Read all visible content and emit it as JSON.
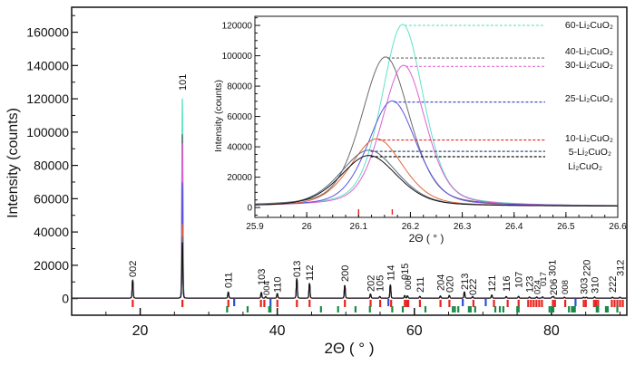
{
  "chart_data": [
    {
      "type": "line",
      "role": "main",
      "xlabel": "2Θ ( ° )",
      "ylabel": "Intensity   (counts)",
      "xlim": [
        10,
        91
      ],
      "ylim": [
        -10000,
        175000
      ],
      "xticks": [
        "20",
        "40",
        "60",
        "80"
      ],
      "xtick_values": [
        20,
        40,
        60,
        80
      ],
      "yticks": [
        "0",
        "20000",
        "40000",
        "60000",
        "80000",
        "100000",
        "120000",
        "140000",
        "160000"
      ],
      "ytick_values": [
        0,
        20000,
        40000,
        60000,
        80000,
        100000,
        120000,
        140000,
        160000
      ],
      "peaks": [
        {
          "hkl": "002",
          "x": 18.9,
          "y": 10700
        },
        {
          "hkl": "101",
          "x": 26.15,
          "y": 33000
        },
        {
          "hkl": "011",
          "x": 32.85,
          "y": 3600
        },
        {
          "hkl": "103",
          "x": 37.67,
          "y": 3300
        },
        {
          "hkl": "004",
          "x": 38.3,
          "y": 800
        },
        {
          "hkl": "110",
          "x": 40.0,
          "y": 2700
        },
        {
          "hkl": "013",
          "x": 42.85,
          "y": 11500
        },
        {
          "hkl": "112",
          "x": 44.7,
          "y": 8700
        },
        {
          "hkl": "200",
          "x": 49.85,
          "y": 7500
        },
        {
          "hkl": "202",
          "x": 53.6,
          "y": 2400
        },
        {
          "hkl": "105",
          "x": 54.96,
          "y": 900
        },
        {
          "hkl": "114",
          "x": 56.5,
          "y": 7800
        },
        {
          "hkl": "015",
          "x": 58.6,
          "y": 1500
        },
        {
          "hkl": "006",
          "x": 59.0,
          "y": 1300
        },
        {
          "hkl": "211",
          "x": 60.8,
          "y": 1000
        },
        {
          "hkl": "204",
          "x": 63.8,
          "y": 1200
        },
        {
          "hkl": "020",
          "x": 65.1,
          "y": 1500
        },
        {
          "hkl": "213",
          "x": 67.3,
          "y": 3600
        },
        {
          "hkl": "022",
          "x": 68.5,
          "y": 900
        },
        {
          "hkl": "121",
          "x": 71.3,
          "y": 1800
        },
        {
          "hkl": "116",
          "x": 73.4,
          "y": 900
        },
        {
          "hkl": "107",
          "x": 75.2,
          "y": 1000
        },
        {
          "hkl": "123",
          "x": 76.8,
          "y": 600
        },
        {
          "hkl": "024",
          "x": 77.85,
          "y": 600
        },
        {
          "hkl": "017",
          "x": 78.7,
          "y": 700
        },
        {
          "hkl": "206",
          "x": 80.3,
          "y": 900
        },
        {
          "hkl": "301",
          "x": 80.1,
          "y": 700
        },
        {
          "hkl": "008",
          "x": 81.9,
          "y": 500
        },
        {
          "hkl": "303",
          "x": 84.7,
          "y": 500
        },
        {
          "hkl": "220",
          "x": 85.1,
          "y": 500
        },
        {
          "hkl": "310",
          "x": 86.3,
          "y": 600
        },
        {
          "hkl": "222",
          "x": 88.9,
          "y": 500
        },
        {
          "hkl": "312",
          "x": 90.0,
          "y": 500
        }
      ],
      "reference_ticks": {
        "red": [
          18.9,
          26.15,
          32.85,
          37.6,
          38.1,
          40.0,
          42.85,
          44.7,
          49.85,
          53.6,
          55.0,
          56.6,
          58.6,
          58.9,
          59.1,
          60.8,
          63.8,
          65.1,
          68.6,
          71.6,
          73.6,
          75.2,
          76.6,
          77.0,
          77.4,
          77.8,
          78.2,
          78.6,
          80.2,
          80.5,
          82.0,
          84.7,
          85.0,
          86.2,
          86.5,
          86.8,
          88.8,
          89.2,
          89.6,
          90.0,
          90.4
        ],
        "blue": [
          33.7,
          39.0,
          56.2,
          67.05,
          70.4,
          83.5
        ],
        "green": [
          32.67,
          35.66,
          38.8,
          39.0,
          46.36,
          48.86,
          51.4,
          53.5,
          56.76,
          58.3,
          61.6,
          65.6,
          65.9,
          66.4,
          67.94,
          68.2,
          68.86,
          71.8,
          72.46,
          72.97,
          75.0,
          75.2,
          79.7,
          80.0,
          80.26,
          82.54,
          82.98,
          83.2,
          83.4,
          86.6,
          86.8,
          87.94,
          88.2,
          89.6
        ]
      },
      "colors": {
        "red": "#e8231e",
        "blue": "#2a4fe0",
        "green": "#1a8a4a"
      }
    },
    {
      "type": "line",
      "role": "inset",
      "xlabel": "2Θ ( ° )",
      "ylabel": "Intensity   (counts)",
      "xlim": [
        25.9,
        26.6
      ],
      "ylim": [
        -6500,
        126000
      ],
      "xticks": [
        "25.9",
        "26",
        "26.1",
        "26.2",
        "26.3",
        "26.4",
        "26.5",
        "26.6"
      ],
      "xtick_values": [
        25.9,
        26.0,
        26.1,
        26.2,
        26.3,
        26.4,
        26.5,
        26.6
      ],
      "yticks": [
        "0",
        "20000",
        "40000",
        "60000",
        "80000",
        "100000",
        "120000"
      ],
      "ytick_values": [
        0,
        20000,
        40000,
        60000,
        80000,
        100000,
        120000
      ],
      "ref_ticks": [
        26.1,
        26.165
      ],
      "series": [
        {
          "name": "60-Li₂CuO₂",
          "color": "#5fe3c8",
          "dash_color": "#5fe3c8",
          "peak_x": 26.185,
          "peak_y": 120000,
          "fwhm": 0.095
        },
        {
          "name": "40-Li₂CuO₂",
          "color": "#6b6b6b",
          "dash_color": "#6b6b6b",
          "peak_x": 26.152,
          "peak_y": 98500,
          "fwhm": 0.11
        },
        {
          "name": "30-Li₂CuO₂",
          "color": "#e05fd2",
          "dash_color": "#e46fd8",
          "peak_x": 26.187,
          "peak_y": 93000,
          "fwhm": 0.1
        },
        {
          "name": "25-Li₂CuO₂",
          "color": "#5a55e0",
          "dash_color": "#2f3fc8",
          "peak_x": 26.165,
          "peak_y": 69500,
          "fwhm": 0.11
        },
        {
          "name": "10-Li₂CuO₂",
          "color": "#e0663a",
          "dash_color": "#e8231e",
          "peak_x": 26.135,
          "peak_y": 44500,
          "fwhm": 0.12
        },
        {
          "name": "5-Li₂CuO₂",
          "color": "#5a6a80",
          "dash_color": "#334a8a",
          "peak_x": 26.12,
          "peak_y": 37000,
          "fwhm": 0.13
        },
        {
          "name": "Li₂CuO₂",
          "color": "#111111",
          "dash_color": "#111111",
          "peak_x": 26.12,
          "peak_y": 33500,
          "fwhm": 0.13
        }
      ]
    }
  ]
}
